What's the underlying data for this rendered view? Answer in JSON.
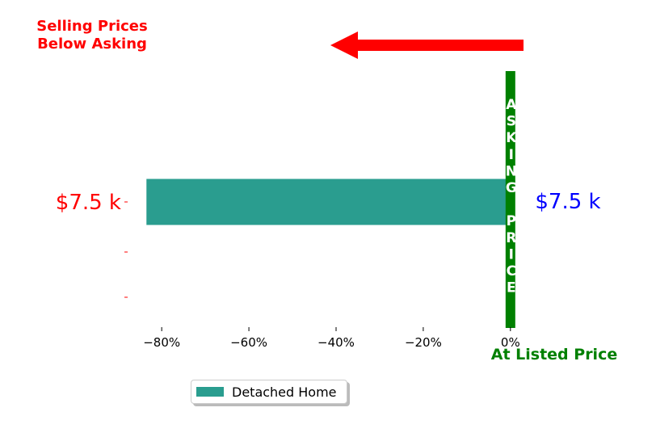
{
  "chart_data": {
    "type": "bar",
    "orientation": "horizontal",
    "series": [
      {
        "name": "Detached Home",
        "values": [
          -83.5
        ],
        "color": "#2a9d8f"
      }
    ],
    "xlim": [
      -88,
      3
    ],
    "x_ticks": [
      -80,
      -60,
      -40,
      -20,
      0
    ],
    "x_tick_labels": [
      "−80%",
      "−60%",
      "−40%",
      "−20%",
      "0%"
    ],
    "y_tick_labels": [
      "$7.5 k",
      "",
      ""
    ],
    "y_tick_color": "#ff0000",
    "right_label": "$7.5 k",
    "right_label_color": "#0000ff",
    "asking_line": {
      "x": 0,
      "color": "#008000",
      "letters": [
        "A",
        "S",
        "K",
        "I",
        "N",
        "G",
        "",
        "P",
        "R",
        "I",
        "C",
        "E"
      ]
    },
    "annotation_top_line1": "Selling Prices",
    "annotation_top_line2": "Below Asking",
    "annotation_top_color": "#ff0000",
    "annotation_bottom": "At Listed Price",
    "annotation_bottom_color": "#008000",
    "arrow_color": "#ff0000",
    "grid": false,
    "legend_position": "bottom-center"
  }
}
